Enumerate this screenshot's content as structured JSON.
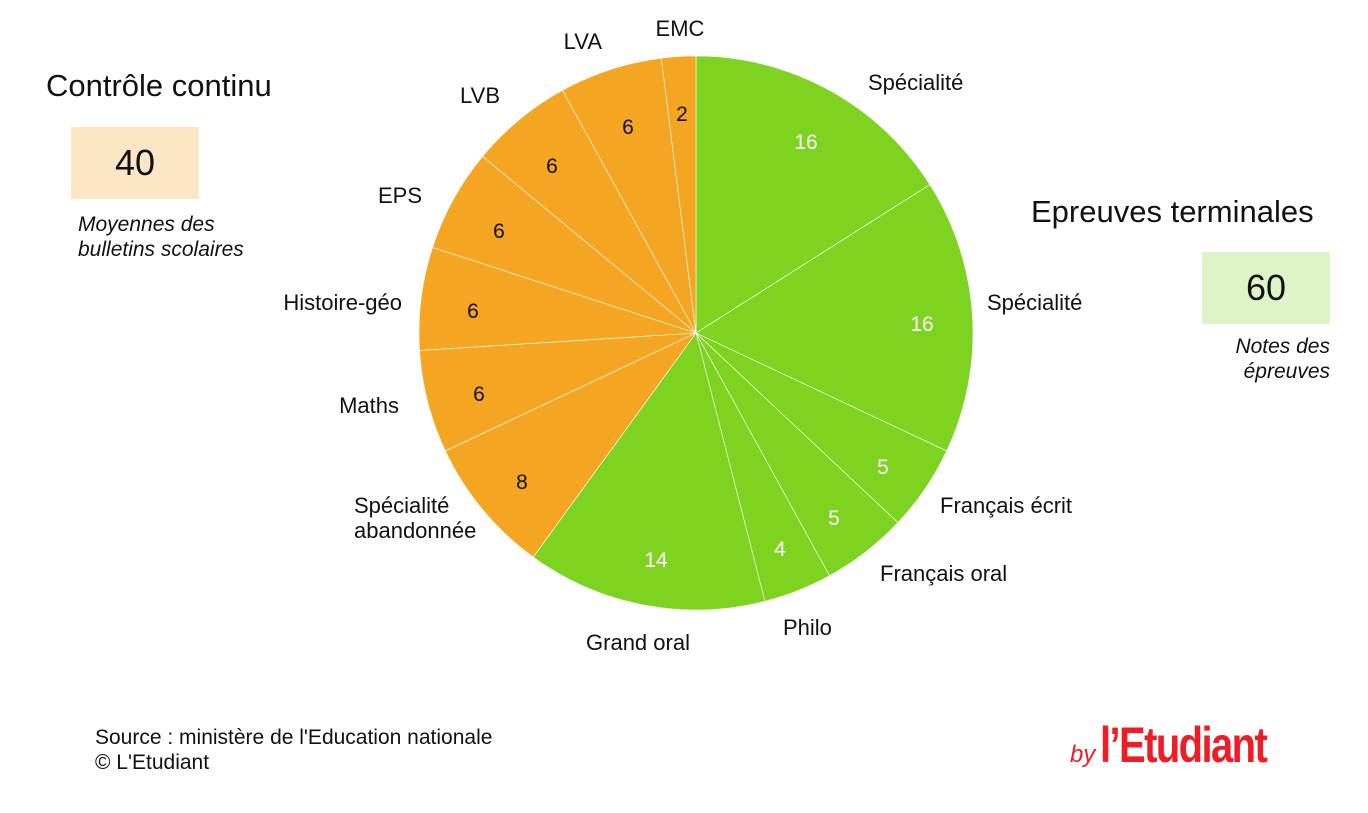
{
  "left_block": {
    "title": "Contrôle continu",
    "value": "40",
    "note_lines": [
      "Moyennes des",
      "bulletins scolaires"
    ]
  },
  "right_block": {
    "title": "Epreuves terminales",
    "value": "60",
    "note_lines": [
      "Notes des",
      "épreuves"
    ]
  },
  "source_lines": [
    "Source : ministère de l'Education nationale",
    "© L'Etudiant"
  ],
  "logo": {
    "by": "by",
    "name": "l’Etudiant"
  },
  "colors": {
    "controle": "#f4a623",
    "terminales": "#7ed321",
    "controle_bg": "#fde6c6",
    "terminales_bg": "#dff3c8"
  },
  "chart_data": {
    "type": "pie",
    "title": "",
    "start": "top",
    "direction": "clockwise",
    "slices": [
      {
        "label": "Spécialité",
        "value": 16,
        "group": "terminales"
      },
      {
        "label": "Spécialité",
        "value": 16,
        "group": "terminales"
      },
      {
        "label": "Français écrit",
        "value": 5,
        "group": "terminales"
      },
      {
        "label": "Français oral",
        "value": 5,
        "group": "terminales"
      },
      {
        "label": "Philo",
        "value": 4,
        "group": "terminales"
      },
      {
        "label": "Grand oral",
        "value": 14,
        "group": "terminales"
      },
      {
        "label": "Spécialité abandonnée",
        "value": 8,
        "group": "controle"
      },
      {
        "label": "Maths",
        "value": 6,
        "group": "controle"
      },
      {
        "label": "Histoire-géo",
        "value": 6,
        "group": "controle"
      },
      {
        "label": "EPS",
        "value": 6,
        "group": "controle"
      },
      {
        "label": "LVB",
        "value": 6,
        "group": "controle"
      },
      {
        "label": "LVA",
        "value": 6,
        "group": "controle"
      },
      {
        "label": "EMC",
        "value": 2,
        "group": "controle"
      }
    ]
  }
}
